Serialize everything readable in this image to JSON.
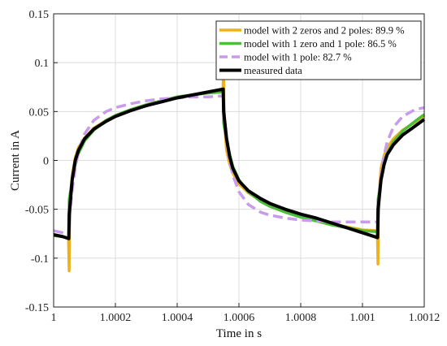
{
  "chart_data": {
    "type": "line",
    "title": "",
    "xlabel": "Time in s",
    "ylabel": "Current in A",
    "xlim": [
      1,
      1.0012
    ],
    "ylim": [
      -0.15,
      0.15
    ],
    "grid": true,
    "legend_position": "top-right",
    "xticks": [
      1,
      1.0002,
      1.0004,
      1.0006,
      1.0008,
      1.001,
      1.0012
    ],
    "xtick_labels": [
      "1",
      "1.0002",
      "1.0004",
      "1.0006",
      "1.0008",
      "1.001",
      "1.0012"
    ],
    "yticks": [
      -0.15,
      -0.1,
      -0.05,
      0,
      0.05,
      0.1,
      0.15
    ],
    "ytick_labels": [
      "-0.15",
      "-0.1",
      "-0.05",
      "0",
      "0.05",
      "0.1",
      "0.15"
    ],
    "series": [
      {
        "name": "model with 2 zeros and 2 poles: 89.9 %",
        "color": "#EDB120",
        "style": "solid",
        "x": [
          1.0,
          1.00003,
          1.000048,
          1.0000502,
          1.0000515,
          1.000055,
          1.00006,
          1.00007,
          1.00008,
          1.0001,
          1.00013,
          1.00017,
          1.0002,
          1.00025,
          1.0003,
          1.00035,
          1.0004,
          1.00045,
          1.0005,
          1.000548,
          1.0005502,
          1.0005515,
          1.000555,
          1.00056,
          1.00057,
          1.00058,
          1.0006,
          1.00063,
          1.00067,
          1.0007,
          1.00075,
          1.0008,
          1.00085,
          1.0009,
          1.00095,
          1.001,
          1.001048,
          1.0010502,
          1.0010515,
          1.001055,
          1.00106,
          1.00107,
          1.00108,
          1.0011,
          1.00113,
          1.00117,
          1.0012
        ],
        "values": [
          -0.076,
          -0.078,
          -0.08,
          -0.113,
          -0.07,
          -0.035,
          -0.015,
          0.003,
          0.013,
          0.023,
          0.033,
          0.041,
          0.046,
          0.052,
          0.057,
          0.061,
          0.065,
          0.067,
          0.069,
          0.07,
          0.095,
          0.06,
          0.03,
          0.01,
          -0.004,
          -0.013,
          -0.024,
          -0.033,
          -0.041,
          -0.046,
          -0.052,
          -0.057,
          -0.061,
          -0.065,
          -0.068,
          -0.071,
          -0.072,
          -0.106,
          -0.06,
          -0.03,
          -0.008,
          0.005,
          0.013,
          0.022,
          0.031,
          0.039,
          0.046
        ]
      },
      {
        "name": "model with 1 zero and 1 pole: 86.5 %",
        "color": "#4DBD3B",
        "style": "solid",
        "x": [
          1.0,
          1.00003,
          1.000049,
          1.0000505,
          1.00006,
          1.00007,
          1.00008,
          1.0001,
          1.00013,
          1.00017,
          1.0002,
          1.00025,
          1.0003,
          1.00035,
          1.0004,
          1.00045,
          1.0005,
          1.000549,
          1.0005505,
          1.00056,
          1.00057,
          1.00058,
          1.0006,
          1.00063,
          1.00067,
          1.0007,
          1.00075,
          1.0008,
          1.00085,
          1.0009,
          1.00095,
          1.001,
          1.001049,
          1.0010505,
          1.00106,
          1.00107,
          1.00108,
          1.0011,
          1.00113,
          1.00117,
          1.0012
        ],
        "values": [
          -0.077,
          -0.078,
          -0.08,
          -0.04,
          -0.02,
          -0.004,
          0.007,
          0.02,
          0.031,
          0.041,
          0.046,
          0.052,
          0.057,
          0.061,
          0.065,
          0.067,
          0.069,
          0.07,
          0.038,
          0.021,
          0.006,
          -0.006,
          -0.02,
          -0.032,
          -0.042,
          -0.047,
          -0.053,
          -0.058,
          -0.062,
          -0.066,
          -0.069,
          -0.072,
          -0.073,
          -0.04,
          -0.02,
          -0.005,
          0.007,
          0.019,
          0.03,
          0.04,
          0.047
        ]
      },
      {
        "name": "model with 1 pole: 82.7 %",
        "color": "#C89BEB",
        "style": "dashed",
        "x": [
          1.0,
          1.00003,
          1.000049,
          1.000051,
          1.00006,
          1.00007,
          1.00008,
          1.0001,
          1.00013,
          1.00017,
          1.0002,
          1.00025,
          1.0003,
          1.00035,
          1.0004,
          1.00045,
          1.0005,
          1.000549,
          1.000551,
          1.00056,
          1.00057,
          1.00058,
          1.0006,
          1.00063,
          1.00067,
          1.0007,
          1.00075,
          1.0008,
          1.00085,
          1.0009,
          1.00095,
          1.001,
          1.001049,
          1.001051,
          1.00106,
          1.00107,
          1.00108,
          1.0011,
          1.00113,
          1.00117,
          1.0012
        ],
        "values": [
          -0.072,
          -0.074,
          -0.076,
          -0.06,
          -0.03,
          -0.008,
          0.009,
          0.027,
          0.041,
          0.05,
          0.054,
          0.058,
          0.061,
          0.063,
          0.064,
          0.065,
          0.065,
          0.066,
          0.048,
          0.02,
          0.0,
          -0.015,
          -0.032,
          -0.045,
          -0.053,
          -0.056,
          -0.059,
          -0.061,
          -0.062,
          -0.063,
          -0.063,
          -0.063,
          -0.063,
          -0.045,
          -0.015,
          0.005,
          0.019,
          0.034,
          0.045,
          0.052,
          0.054
        ]
      },
      {
        "name": "measured data",
        "color": "#000000",
        "style": "solid",
        "x": [
          1.0,
          1.00003,
          1.000049,
          1.0000505,
          1.00006,
          1.00007,
          1.00008,
          1.0001,
          1.00013,
          1.00017,
          1.0002,
          1.00025,
          1.0003,
          1.00035,
          1.0004,
          1.00045,
          1.0005,
          1.000549,
          1.0005505,
          1.00056,
          1.00057,
          1.00058,
          1.0006,
          1.00063,
          1.00067,
          1.0007,
          1.00075,
          1.0008,
          1.00085,
          1.0009,
          1.00095,
          1.001,
          1.001049,
          1.0010505,
          1.00106,
          1.00107,
          1.00108,
          1.0011,
          1.00113,
          1.00117,
          1.0012
        ],
        "values": [
          -0.076,
          -0.078,
          -0.08,
          -0.055,
          -0.02,
          0.0,
          0.01,
          0.022,
          0.032,
          0.04,
          0.045,
          0.051,
          0.056,
          0.06,
          0.064,
          0.067,
          0.07,
          0.073,
          0.05,
          0.022,
          0.004,
          -0.008,
          -0.021,
          -0.031,
          -0.039,
          -0.044,
          -0.05,
          -0.055,
          -0.059,
          -0.064,
          -0.069,
          -0.074,
          -0.079,
          -0.05,
          -0.02,
          -0.004,
          0.006,
          0.016,
          0.026,
          0.035,
          0.042
        ]
      }
    ]
  }
}
